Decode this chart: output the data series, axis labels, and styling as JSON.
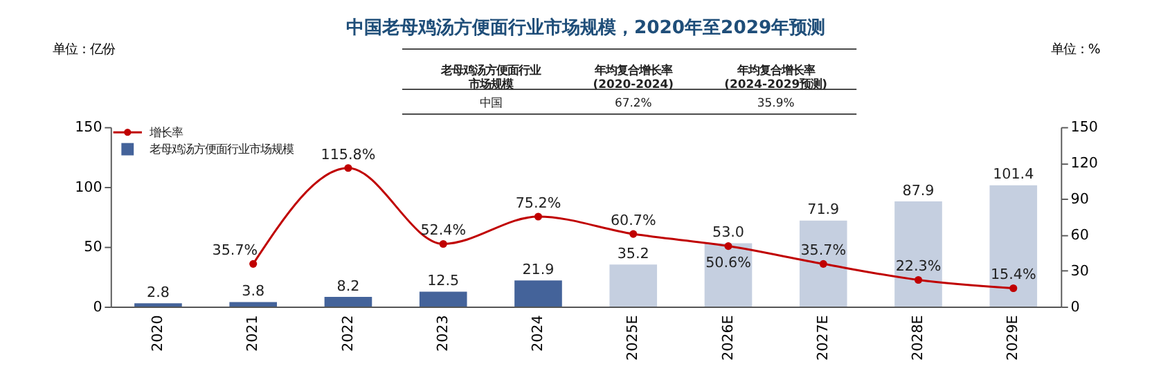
{
  "chart_data": {
    "type": "bar",
    "title": "中国老母鸡汤方便面行业市场规模，2020年至2029年预测",
    "ylabel": "单位：亿份",
    "y2label": "单位：%",
    "categories": [
      "2020",
      "2021",
      "2022",
      "2023",
      "2024",
      "2025E",
      "2026E",
      "2027E",
      "2028E",
      "2029E"
    ],
    "series": [
      {
        "name": "增长率",
        "type": "line",
        "axis": "y2",
        "color": "#c00000",
        "marker": "circle",
        "line_style": "solid",
        "values": [
          null,
          35.7,
          115.8,
          52.4,
          75.2,
          60.7,
          50.6,
          35.7,
          22.3,
          15.4
        ],
        "value_labels": [
          null,
          "35.7%",
          "115.8%",
          "52.4%",
          "75.2%",
          "60.7%",
          "50.6%",
          "35.7%",
          "22.3%",
          "15.4%"
        ]
      },
      {
        "name": "老母鸡汤方便面行业市场规模",
        "color": "#44639a",
        "colors": [
          "#44639a",
          "#44639a",
          "#44639a",
          "#44639a",
          "#44639a",
          "#c5cfe0",
          "#c5cfe0",
          "#c5cfe0",
          "#c5cfe0",
          "#c5cfe0"
        ],
        "values": [
          2.8,
          3.8,
          8.2,
          12.5,
          21.9,
          35.2,
          53.0,
          71.9,
          87.9,
          101.4
        ],
        "value_labels": [
          "2.8",
          "3.8",
          "8.2",
          "12.5",
          "21.9",
          "35.2",
          "53.0",
          "71.9",
          "87.9",
          "101.4"
        ]
      }
    ],
    "ylim": [
      0,
      150
    ],
    "yticks": [
      0,
      50,
      100,
      150
    ],
    "y2lim": [
      0,
      150
    ],
    "y2ticks": [
      0,
      30,
      60,
      90,
      120,
      150
    ],
    "grid": false,
    "legend": "top left",
    "annotations": [
      "老母鸡汤方便面行业市场规模",
      "年均复合增长率\n(2020-2024)",
      "年均复合增长率\n(2024-2029预测)",
      "中国",
      "67.2%",
      "35.9%"
    ]
  }
}
